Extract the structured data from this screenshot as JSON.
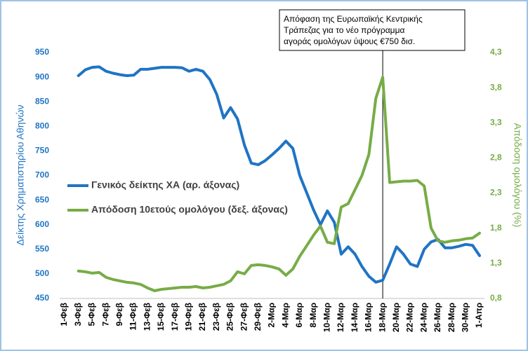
{
  "chart_data": {
    "type": "line",
    "ylabel": "Δείκτης Χρηματιστηρίου Αθηνών",
    "y2label": "Απόδοση ομολόγου (%)",
    "categories": [
      "1-Φεβ",
      null,
      "3-Φεβ",
      null,
      "5-Φεβ",
      null,
      "7-Φεβ",
      null,
      "9-Φεβ",
      null,
      "11-Φεβ",
      null,
      "13-Φεβ",
      null,
      "15-Φεβ",
      null,
      "17-Φεβ",
      null,
      "19-Φεβ",
      null,
      "21-Φεβ",
      null,
      "23-Φεβ",
      null,
      "25-Φεβ",
      null,
      "27-Φεβ",
      null,
      "29-Φεβ",
      null,
      "2-Μαρ",
      null,
      "4-Μαρ",
      null,
      "6-Μαρ",
      null,
      "8-Μαρ",
      null,
      "10-Μαρ",
      null,
      "12-Μαρ",
      null,
      "14-Μαρ",
      null,
      "16-Μαρ",
      null,
      "18-Μαρ",
      null,
      "20-Μαρ",
      null,
      "22-Μαρ",
      null,
      "24-Μαρ",
      null,
      "26-Μαρ",
      null,
      "28-Μαρ",
      null,
      "30-Μαρ",
      null,
      "1-Απρ"
    ],
    "series": [
      {
        "name": "Γενικός δείκτης ΧΑ (αρ. άξονας)",
        "color": "#1f74c4",
        "axis": "y",
        "values": [
          null,
          null,
          903,
          915,
          920,
          921,
          912,
          908,
          905,
          903,
          904,
          916,
          916,
          918,
          920,
          920,
          920,
          919,
          912,
          916,
          912,
          895,
          865,
          817,
          838,
          815,
          762,
          725,
          722,
          730,
          742,
          755,
          770,
          755,
          700,
          665,
          630,
          600,
          628,
          605,
          540,
          555,
          540,
          515,
          495,
          483,
          487,
          520,
          555,
          540,
          520,
          515,
          550,
          565,
          570,
          553,
          553,
          556,
          560,
          558,
          537
        ]
      },
      {
        "name": "Απόδοση 10ετούς ομολόγου (δεξ. άξονας)",
        "color": "#77ac46",
        "axis": "y2",
        "values": [
          null,
          null,
          1.19,
          1.18,
          1.16,
          1.17,
          1.1,
          1.07,
          1.05,
          1.03,
          1.02,
          1.0,
          0.95,
          0.91,
          0.93,
          0.94,
          0.95,
          0.96,
          0.96,
          0.97,
          0.95,
          0.96,
          0.98,
          1.0,
          1.05,
          1.18,
          1.15,
          1.27,
          1.28,
          1.27,
          1.25,
          1.22,
          1.13,
          1.22,
          1.4,
          1.55,
          1.7,
          1.83,
          1.6,
          1.58,
          2.1,
          2.15,
          2.35,
          2.55,
          2.85,
          3.65,
          3.95,
          2.45,
          2.46,
          2.47,
          2.47,
          2.48,
          2.4,
          1.8,
          1.62,
          1.6,
          1.62,
          1.63,
          1.65,
          1.66,
          1.73
        ]
      }
    ],
    "ylim": [
      450,
      950
    ],
    "yticks": [
      450,
      500,
      550,
      600,
      650,
      700,
      750,
      800,
      850,
      900,
      950
    ],
    "y2lim": [
      0.8,
      4.3
    ],
    "y2ticks": [
      {
        "value": 0.8,
        "label": "0,8"
      },
      {
        "value": 1.3,
        "label": "1,3"
      },
      {
        "value": 1.8,
        "label": "1,8"
      },
      {
        "value": 2.3,
        "label": "2,3"
      },
      {
        "value": 2.8,
        "label": "2,8"
      },
      {
        "value": 3.3,
        "label": "3,3"
      },
      {
        "value": 3.8,
        "label": "3,8"
      },
      {
        "value": 4.3,
        "label": "4,3"
      }
    ],
    "legend": "left",
    "annotation": {
      "category": "18-Μαρ",
      "lines": [
        "Απόφαση της Ευρωπαϊκής Κεντρικής",
        "Τράπεζας για το νέο πρόγραμμα",
        "αγοράς ομολόγων ύψους €750 δισ."
      ]
    }
  }
}
